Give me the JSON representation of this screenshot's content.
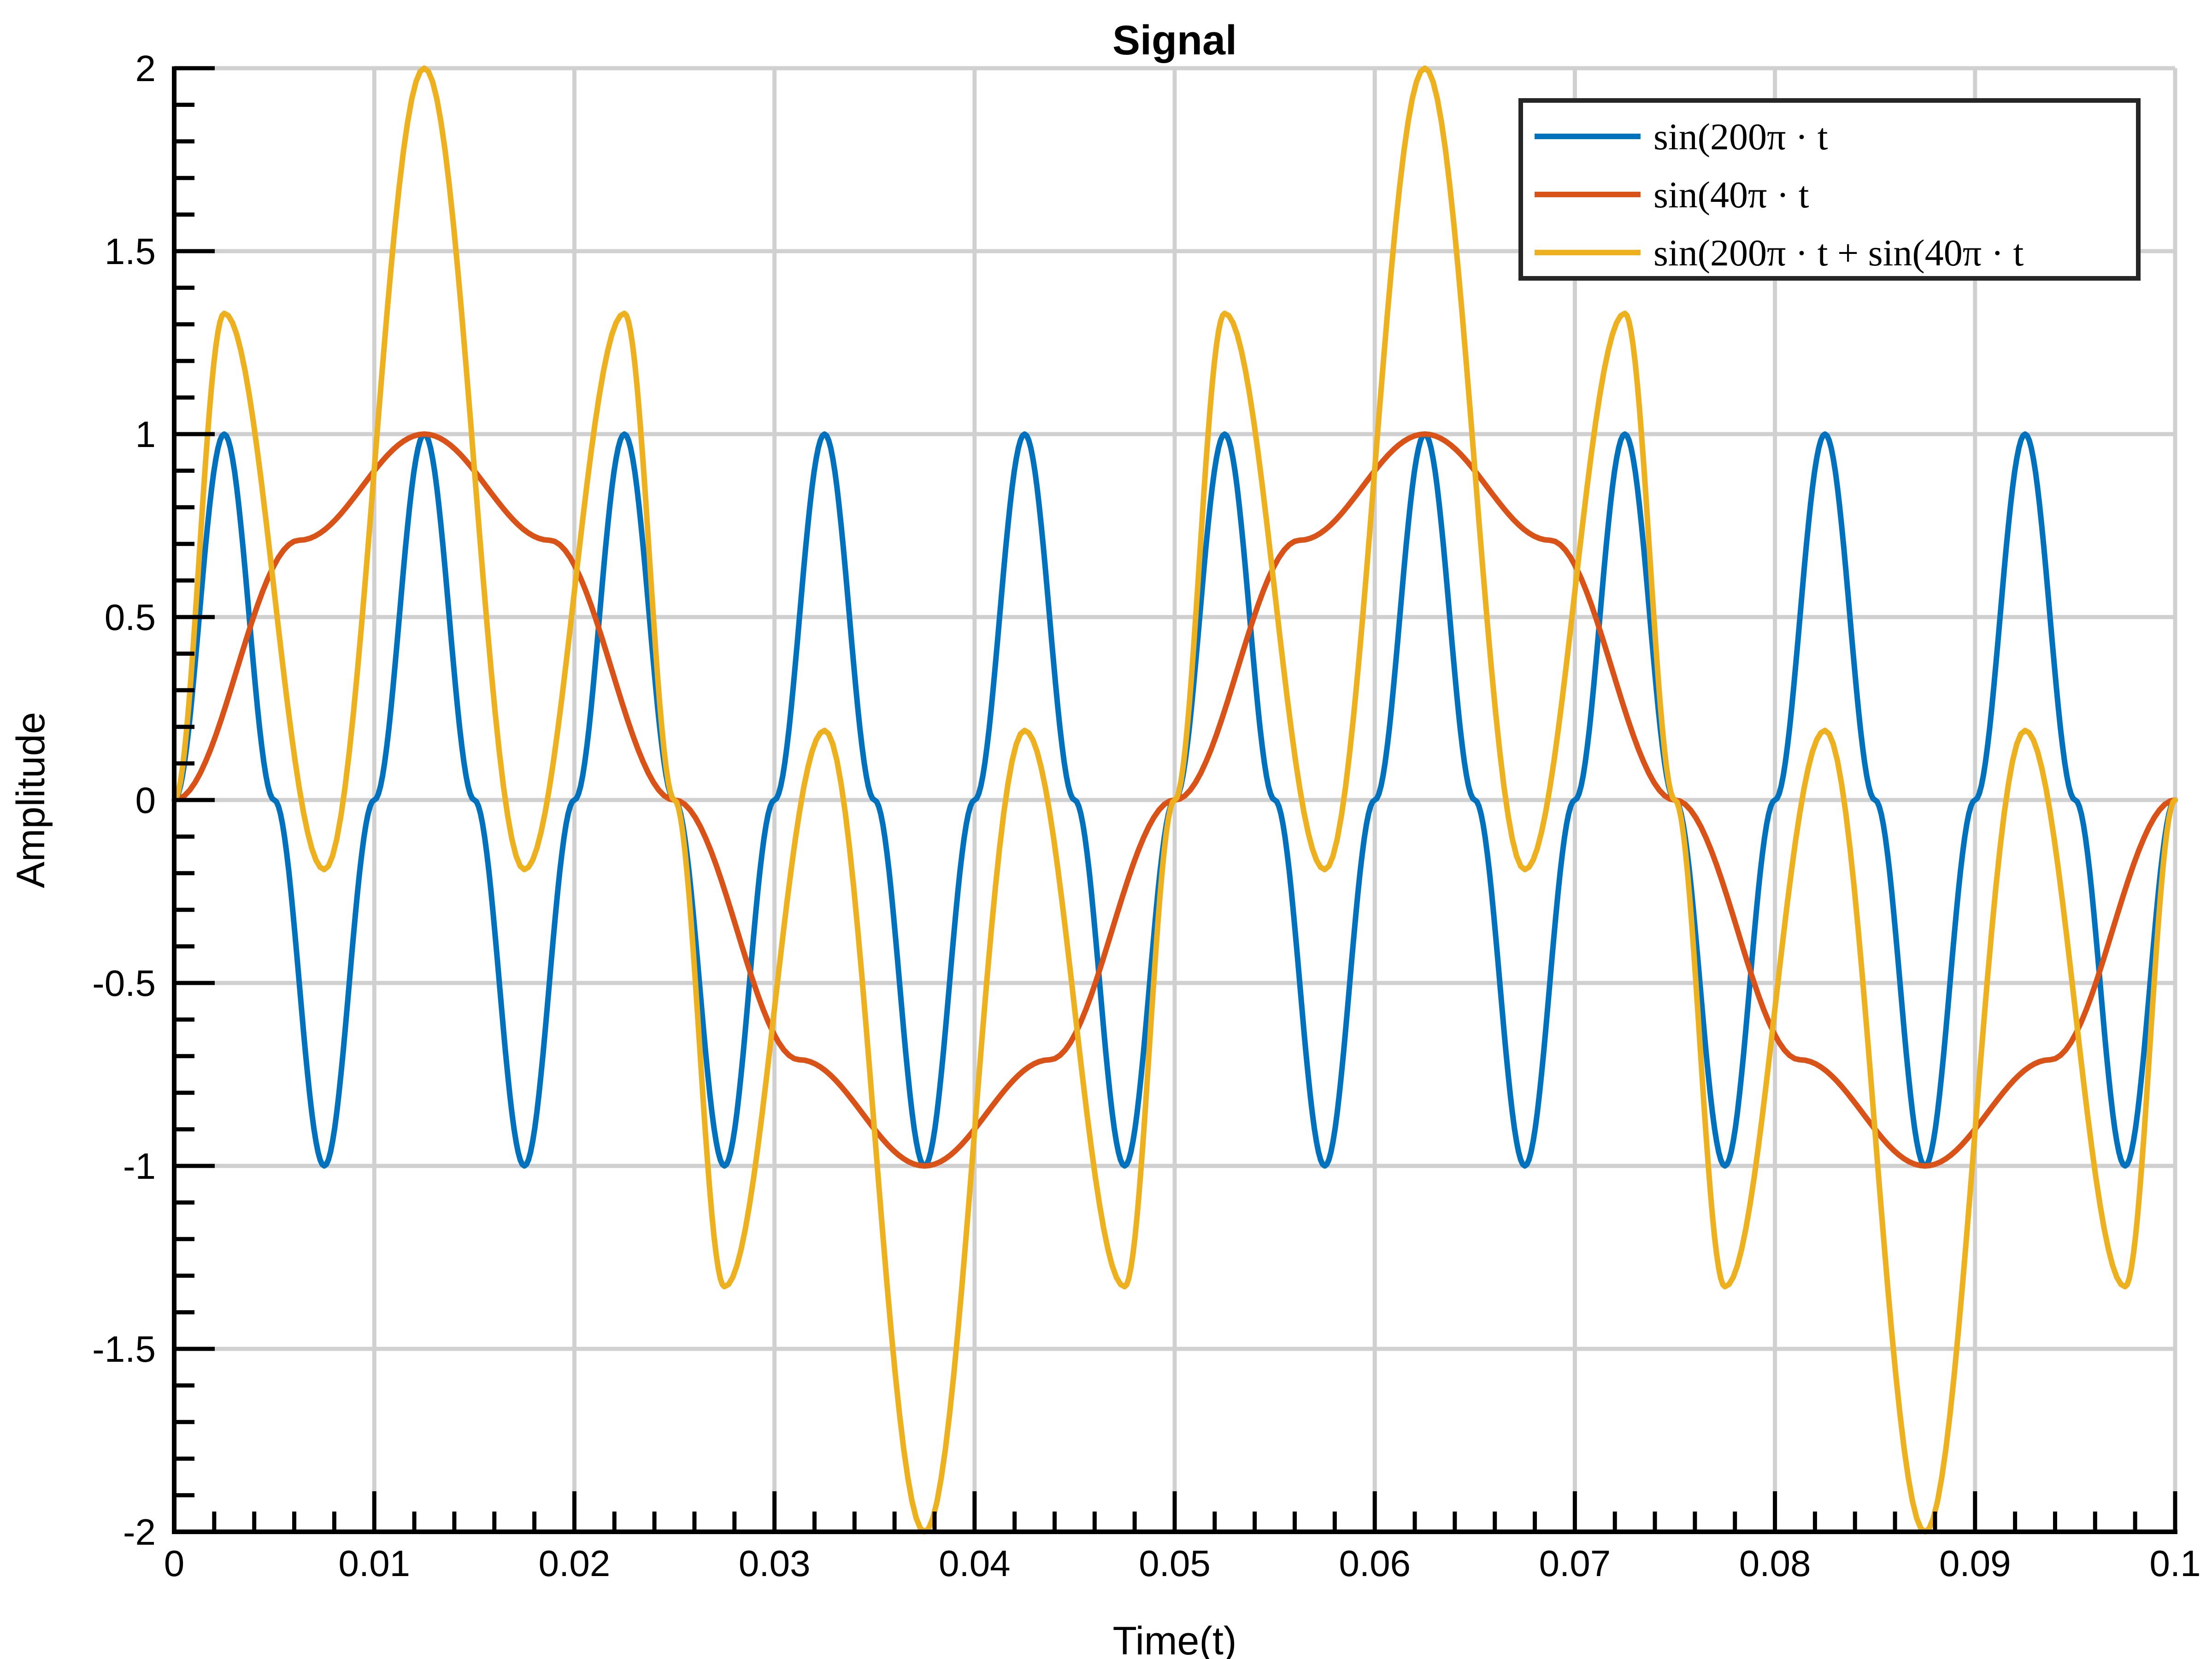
{
  "chart_data": {
    "type": "line",
    "title": "Signal",
    "xlabel": "Time(t)",
    "ylabel": "Amplitude",
    "xlim": [
      0,
      0.1
    ],
    "ylim": [
      -2,
      2
    ],
    "xticks": [
      0,
      0.01,
      0.02,
      0.03,
      0.04,
      0.05,
      0.06,
      0.07,
      0.08,
      0.09,
      0.1
    ],
    "xtick_labels": [
      "0",
      "0.01",
      "0.02",
      "0.03",
      "0.04",
      "0.05",
      "0.06",
      "0.07",
      "0.08",
      "0.09",
      "0.1"
    ],
    "yticks": [
      -2,
      -1.5,
      -1,
      -0.5,
      0,
      0.5,
      1,
      1.5,
      2
    ],
    "ytick_labels": [
      "-2",
      "-1.5",
      "-1",
      "-0.5",
      "0",
      "0.5",
      "1",
      "1.5",
      "2"
    ],
    "grid": true,
    "legend_position": "top-right",
    "series": [
      {
        "name": "sin(200π · t",
        "color": "#0072BD",
        "x": [
          0,
          0.0025,
          0.005,
          0.0075,
          0.01,
          0.0125,
          0.015,
          0.0175,
          0.02,
          0.0225,
          0.025,
          0.0275,
          0.03,
          0.0325,
          0.035,
          0.0375,
          0.04,
          0.0425,
          0.045,
          0.0475,
          0.05,
          0.0525,
          0.055,
          0.0575,
          0.06,
          0.0625,
          0.065,
          0.0675,
          0.07,
          0.0725,
          0.075,
          0.0775,
          0.08,
          0.0825,
          0.085,
          0.0875,
          0.09,
          0.0925,
          0.095,
          0.0975,
          0.1
        ],
        "y": [
          0,
          1,
          0,
          -1,
          0,
          1,
          0,
          -1,
          0,
          1,
          0,
          -1,
          0,
          1,
          0,
          -1,
          0,
          1,
          0,
          -1,
          0,
          1,
          0,
          -1,
          0,
          1,
          0,
          -1,
          0,
          1,
          0,
          -1,
          0,
          1,
          0,
          -1,
          0,
          1,
          0,
          -1,
          0
        ]
      },
      {
        "name": "sin(40π · t",
        "color": "#D95319",
        "x": [
          0,
          0.00625,
          0.0125,
          0.01875,
          0.025,
          0.03125,
          0.0375,
          0.04375,
          0.05,
          0.05625,
          0.0625,
          0.06875,
          0.075,
          0.08125,
          0.0875,
          0.09375,
          0.1
        ],
        "y": [
          0,
          0.71,
          1,
          0.71,
          0,
          -0.71,
          -1,
          -0.71,
          0,
          0.71,
          1,
          0.71,
          0,
          -0.71,
          -1,
          -0.71,
          0
        ]
      },
      {
        "name": "sin(200π · t + sin(40π · t",
        "color": "#EDB120",
        "x": [
          0,
          0.0025,
          0.0075,
          0.0125,
          0.0175,
          0.0225,
          0.025,
          0.0275,
          0.0325,
          0.0375,
          0.0425,
          0.0475,
          0.05,
          0.0525,
          0.0575,
          0.0625,
          0.0675,
          0.0725,
          0.075,
          0.0775,
          0.0825,
          0.0875,
          0.0925,
          0.0975,
          0.1
        ],
        "y": [
          0,
          1.33,
          -0.19,
          2,
          -0.19,
          1.33,
          0,
          -1.33,
          0.19,
          -2,
          0.19,
          -1.33,
          0,
          1.33,
          -0.19,
          2,
          -0.19,
          1.33,
          0,
          -1.33,
          0.19,
          -2,
          0.19,
          -1.33,
          0
        ]
      }
    ]
  }
}
